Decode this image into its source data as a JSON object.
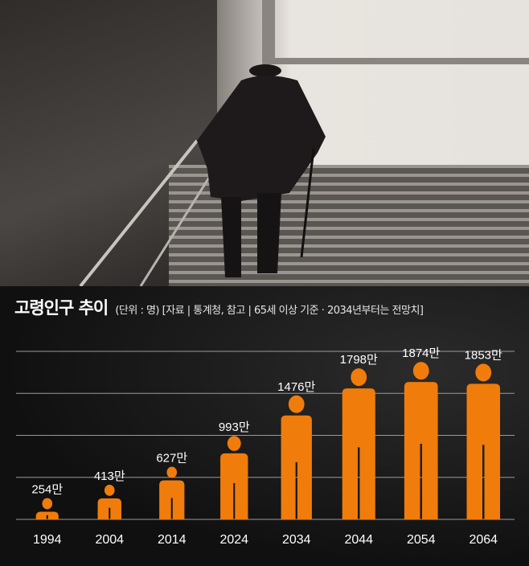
{
  "chart_data": {
    "type": "bar",
    "title": "고령인구 추이",
    "subtitle": "(단위 : 명) [자료 | 통계청, 참고 | 65세 이상 기준 · 2034년부터는 전망치]",
    "categories": [
      "1994",
      "2004",
      "2014",
      "2024",
      "2034",
      "2044",
      "2054",
      "2064"
    ],
    "values": [
      254,
      413,
      627,
      993,
      1476,
      1798,
      1874,
      1853
    ],
    "data_labels": [
      "254만",
      "413만",
      "627만",
      "993만",
      "1476만",
      "1798만",
      "1874만",
      "1853만"
    ],
    "unit": "만 명",
    "ylim": [
      0,
      2000
    ],
    "grid": true,
    "bar_color": "#f07c0c",
    "mark_shape": "person-icon"
  }
}
